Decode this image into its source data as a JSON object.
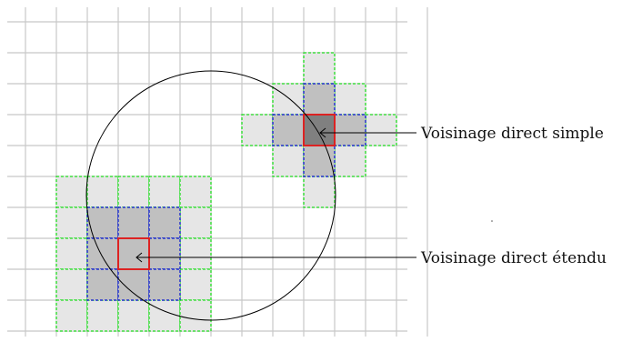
{
  "labels": {
    "simple": "Voisinage direct simple",
    "extended": "Voisinage direct étendu"
  },
  "colors": {
    "grid": "#c8c8c8",
    "cell_light": "#e6e6e6",
    "cell_mid": "#c0c0c0",
    "cell_dark": "#808080",
    "border_outer": "#22dd22",
    "border_inner": "#2233cc",
    "border_center": "#dd2222",
    "circle": "#000000",
    "text": "#111111"
  }
}
